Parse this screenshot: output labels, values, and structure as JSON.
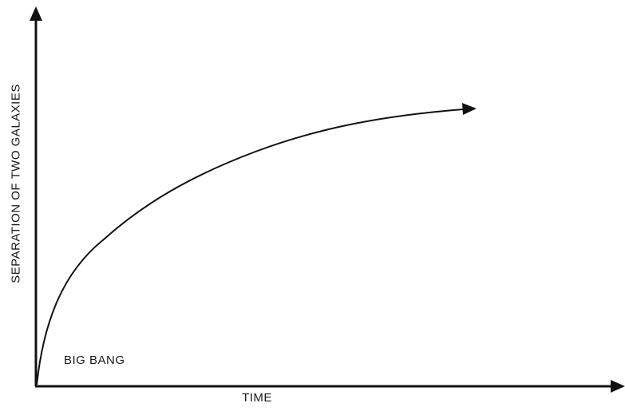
{
  "diagram": {
    "xlabel": "TIME",
    "ylabel": "SEPARATION OF TWO GALAXIES",
    "origin_annotation": "BIG BANG",
    "curve_shape": "decelerating-expansion",
    "line_color": "#111111"
  }
}
